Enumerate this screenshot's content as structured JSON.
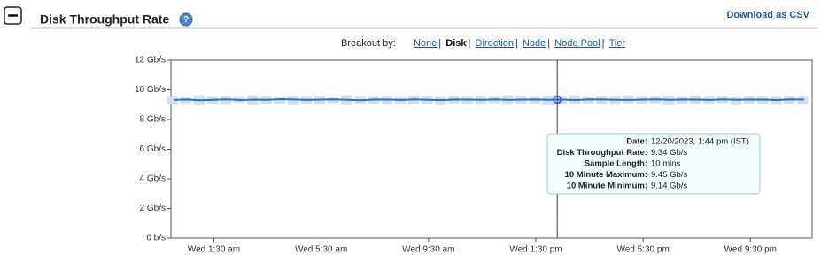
{
  "header": {
    "title": "Disk Throughput Rate",
    "download": "Download as CSV"
  },
  "breakout": {
    "label": "Breakout by:",
    "options": [
      "None",
      "Disk",
      "Direction",
      "Node",
      "Node Pool",
      "Tier"
    ],
    "selected": 1
  },
  "chart_data": {
    "type": "line",
    "x": [
      0,
      0.5,
      1,
      1.5,
      2,
      2.5,
      3,
      3.5,
      4,
      4.5,
      5,
      5.5,
      6,
      6.5,
      7,
      7.5,
      8,
      8.5,
      9,
      9.5,
      10,
      10.5,
      11,
      11.5,
      12,
      12.5,
      13,
      13.5,
      14,
      14.5,
      15,
      15.5,
      16,
      16.5,
      17,
      17.5,
      18,
      18.5,
      19,
      19.5,
      20,
      20.5,
      21,
      21.5,
      22,
      22.5,
      23,
      23.5
    ],
    "series": [
      {
        "color": "#2a6fd0",
        "values": [
          9.32,
          9.35,
          9.3,
          9.33,
          9.36,
          9.31,
          9.34,
          9.33,
          9.37,
          9.35,
          9.32,
          9.34,
          9.36,
          9.33,
          9.3,
          9.35,
          9.34,
          9.32,
          9.36,
          9.33,
          9.31,
          9.35,
          9.34,
          9.33,
          9.36,
          9.32,
          9.34,
          9.35,
          9.33,
          9.34,
          9.31,
          9.36,
          9.35,
          9.33,
          9.32,
          9.34,
          9.36,
          9.33,
          9.35,
          9.34,
          9.32,
          9.36,
          9.33,
          9.35,
          9.34,
          9.31,
          9.36,
          9.34
        ]
      }
    ],
    "band": {
      "color": "#cfe0f4",
      "upper": [
        9.6,
        9.55,
        9.65,
        9.58,
        9.62,
        9.56,
        9.64,
        9.6,
        9.57,
        9.63,
        9.59,
        9.61,
        9.55,
        9.66,
        9.6,
        9.58,
        9.62,
        9.57,
        9.64,
        9.6,
        9.56,
        9.63,
        9.59,
        9.61,
        9.58,
        9.65,
        9.6,
        9.57,
        9.62,
        9.59,
        9.64,
        9.56,
        9.61,
        9.6,
        9.63,
        9.58,
        9.6,
        9.62,
        9.57,
        9.65,
        9.59,
        9.61,
        9.56,
        9.63,
        9.6,
        9.58,
        9.62,
        9.6
      ],
      "lower": [
        9.02,
        9.1,
        8.95,
        9.05,
        9.0,
        9.12,
        8.98,
        9.06,
        9.03,
        8.96,
        9.08,
        9.01,
        9.1,
        8.97,
        9.04,
        9.07,
        8.99,
        9.09,
        9.02,
        9.05,
        8.96,
        9.08,
        9.03,
        9.0,
        9.1,
        8.98,
        9.04,
        9.06,
        8.95,
        9.07,
        9.01,
        9.09,
        9.03,
        8.99,
        9.05,
        9.02,
        9.08,
        8.97,
        9.04,
        9.06,
        9.0,
        9.1,
        8.98,
        9.03,
        9.07,
        8.99,
        9.05,
        9.02
      ]
    },
    "xlim": [
      -0.1,
      23.8
    ],
    "xticks": [
      {
        "value": 1.5,
        "label": "Wed 1:30 am"
      },
      {
        "value": 5.5,
        "label": "Wed 5:30 am"
      },
      {
        "value": 9.5,
        "label": "Wed 9:30 am"
      },
      {
        "value": 13.5,
        "label": "Wed 1:30 pm"
      },
      {
        "value": 17.5,
        "label": "Wed 5:30 pm"
      },
      {
        "value": 21.5,
        "label": "Wed 9:30 pm"
      }
    ],
    "ylim": [
      0,
      12
    ],
    "yticks": [
      {
        "value": 0,
        "label": "0 b/s"
      },
      {
        "value": 2,
        "label": "2 Gb/s"
      },
      {
        "value": 4,
        "label": "4 Gb/s"
      },
      {
        "value": 6,
        "label": "6 Gb/s"
      },
      {
        "value": 8,
        "label": "8 Gb/s"
      },
      {
        "value": 10,
        "label": "10 Gb/s"
      },
      {
        "value": 12,
        "label": "12 Gb/s"
      }
    ],
    "grid": false,
    "cursor": {
      "x": 14.3,
      "y": 9.34,
      "color": "#8b1a1a"
    },
    "tooltip": [
      {
        "label": "Date:",
        "value": "12/20/2023, 1:44 pm (IST)"
      },
      {
        "label": "Disk Throughput Rate:",
        "value": "9.34 Gb/s"
      },
      {
        "label": "Sample Length:",
        "value": "10 mins"
      },
      {
        "label": "10 Minute Maximum:",
        "value": "9.45 Gb/s"
      },
      {
        "label": "10 Minute Minimum:",
        "value": "9.14 Gb/s"
      }
    ]
  }
}
